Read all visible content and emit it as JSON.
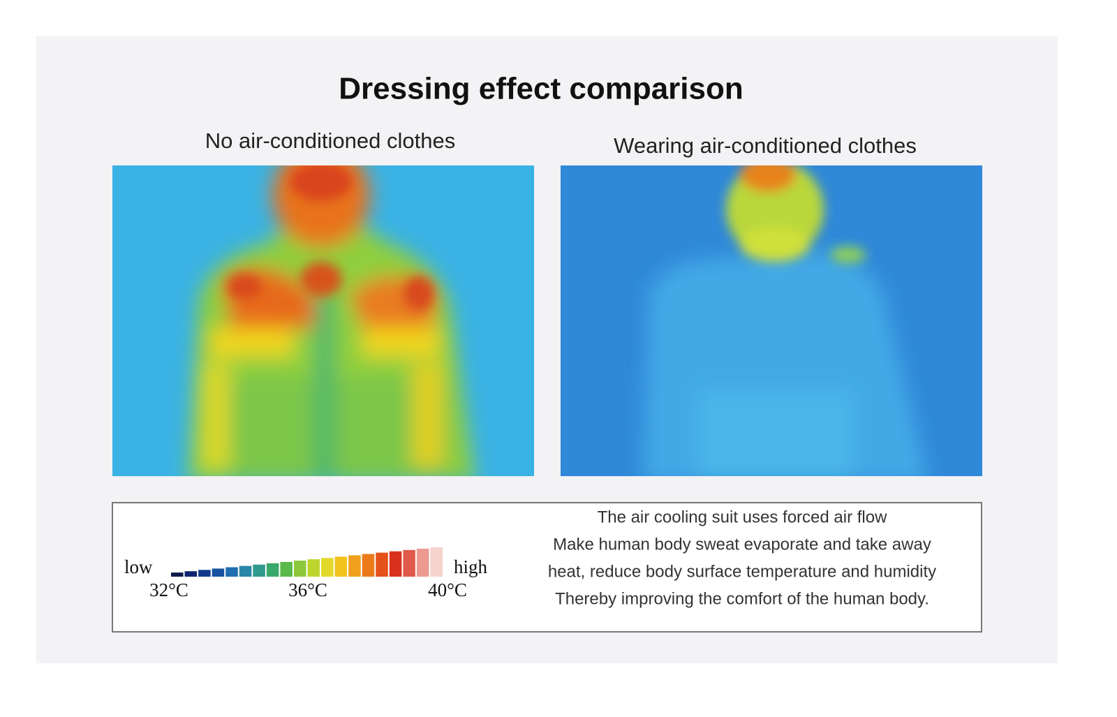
{
  "header": {
    "title": "Dressing effect comparison"
  },
  "panels": [
    {
      "caption": "No air-conditioned clothes"
    },
    {
      "caption": "Wearing air-conditioned clothes"
    }
  ],
  "legend": {
    "low": "low",
    "high": "high",
    "temperatures": [
      "32°C",
      "36°C",
      "40°C"
    ]
  },
  "description": [
    "The air cooling suit uses forced air flow",
    "Make human body sweat evaporate and take away",
    "heat, reduce body surface temperature and humidity",
    "Thereby improving the comfort of the human body."
  ]
}
